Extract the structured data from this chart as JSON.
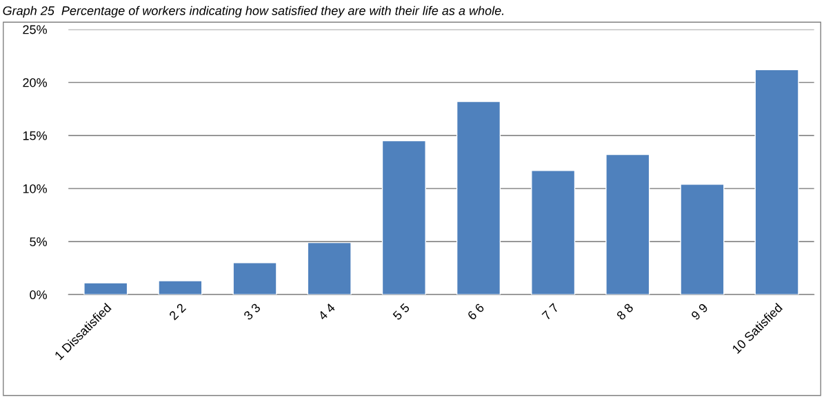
{
  "chart_data": {
    "type": "bar",
    "title": "Graph 25  Percentage of workers indicating how satisfied they are with their life as a whole.",
    "categories": [
      "1 Dissatisfied",
      "2 2",
      "3 3",
      "4 4",
      "5 5",
      "6 6",
      "7 7",
      "8 8",
      "9 9",
      "10 Satisfied"
    ],
    "values": [
      1.1,
      1.3,
      3.0,
      4.9,
      14.5,
      18.2,
      11.7,
      13.2,
      10.4,
      21.2
    ],
    "color": "#4f81bd",
    "ylim": [
      0,
      25
    ],
    "yticks": [
      {
        "value": 0,
        "label": "0%"
      },
      {
        "value": 5,
        "label": "5%"
      },
      {
        "value": 10,
        "label": "10%"
      },
      {
        "value": 15,
        "label": "15%"
      },
      {
        "value": 20,
        "label": "20%"
      },
      {
        "value": 25,
        "label": "25%"
      }
    ],
    "grid": "y",
    "legend": false
  }
}
